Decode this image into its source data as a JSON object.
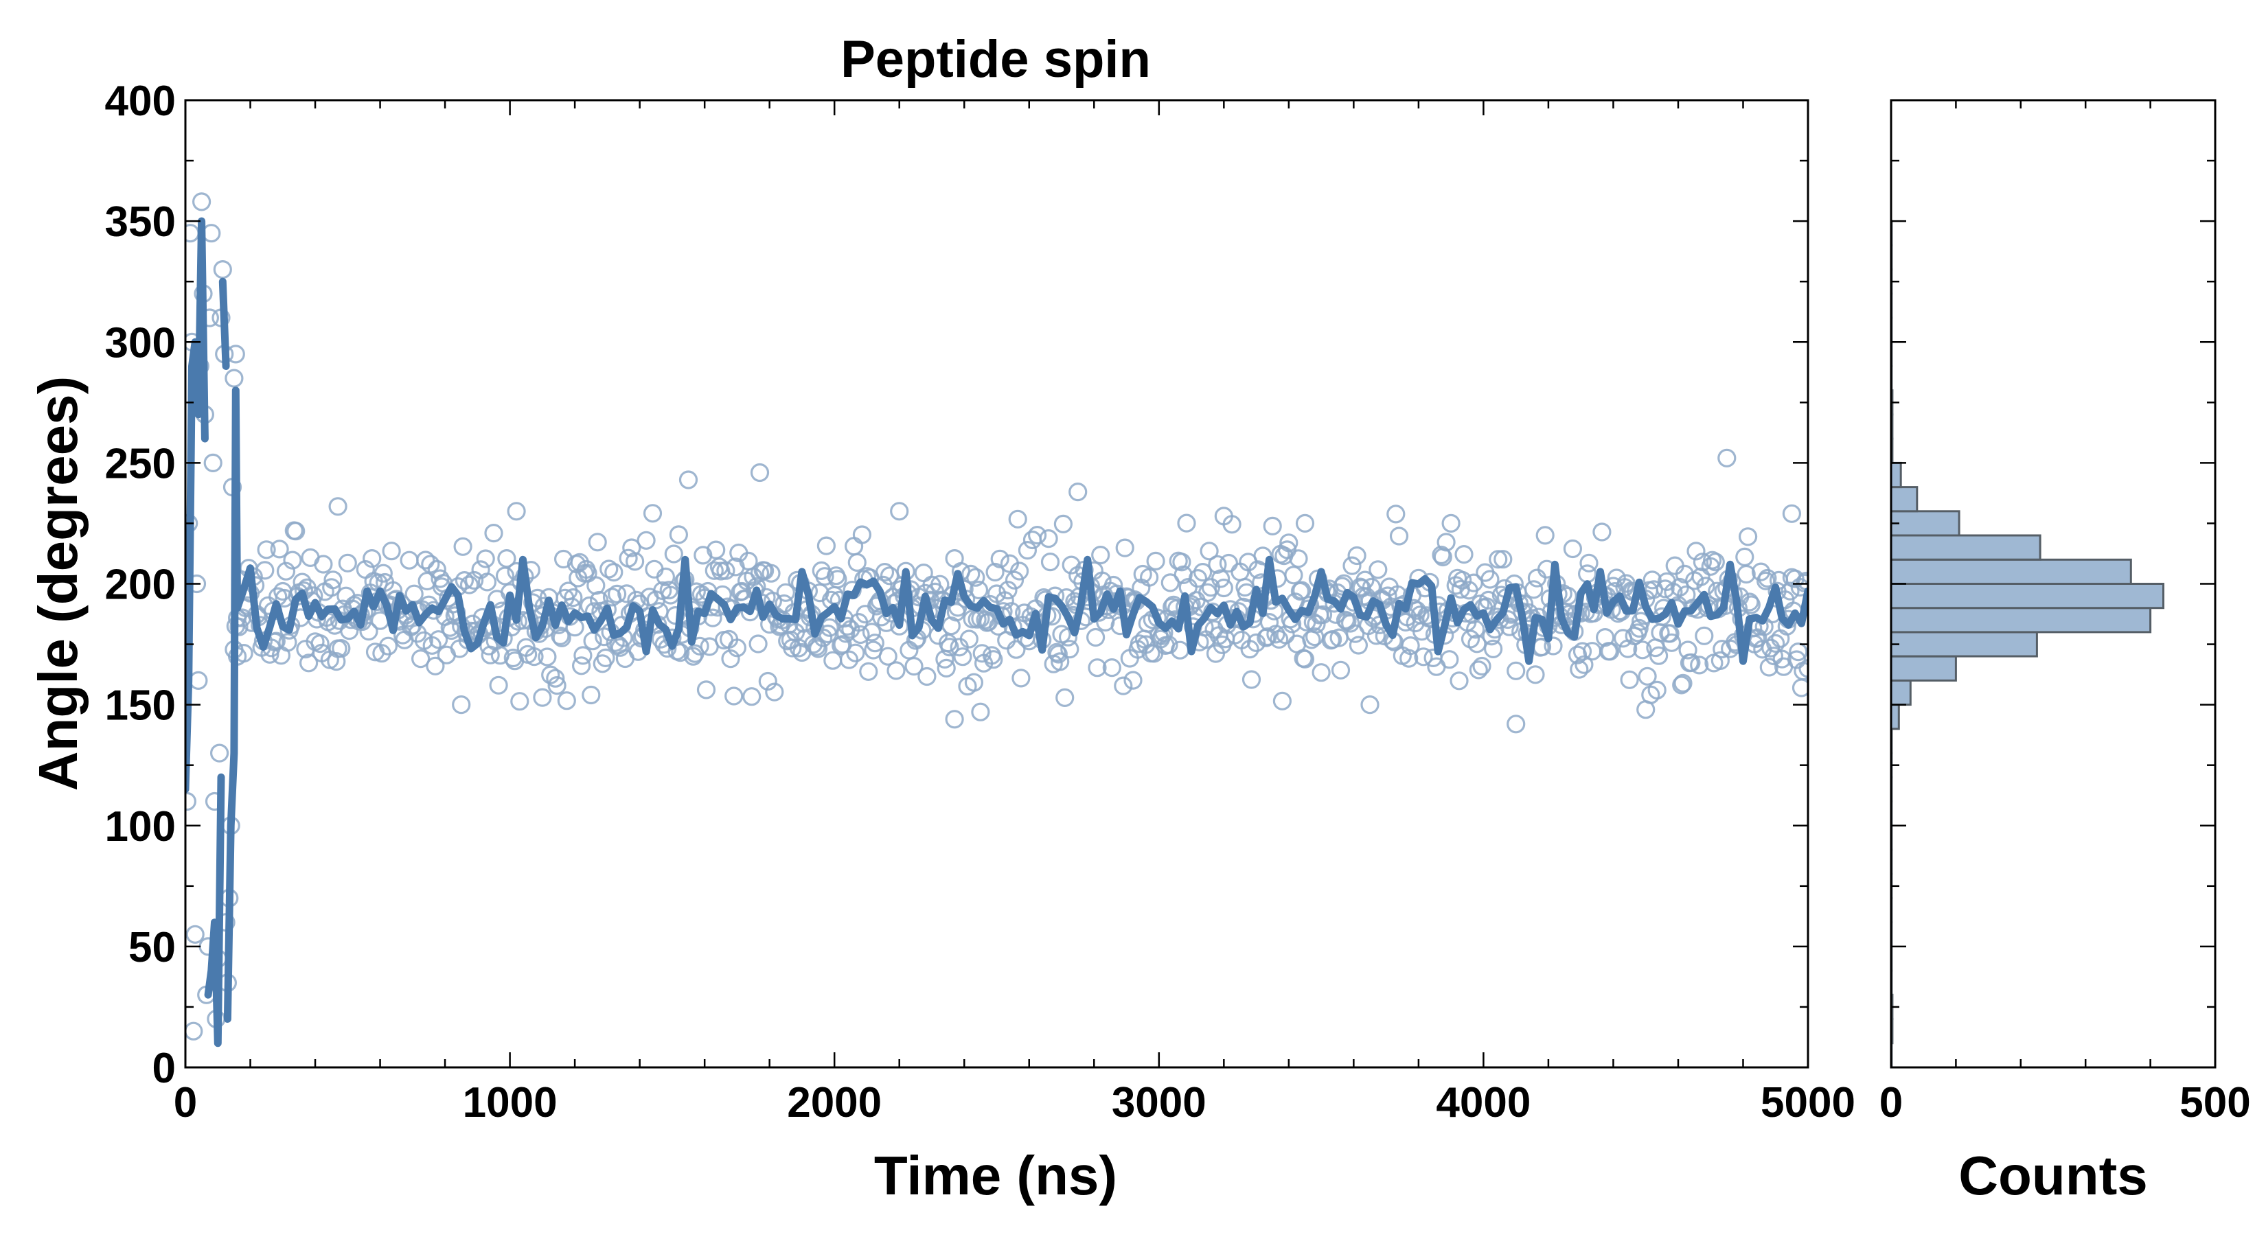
{
  "chart_data": [
    {
      "type": "scatter",
      "title": "Peptide spin",
      "xlabel": "Time (ns)",
      "ylabel": "Angle (degrees)",
      "xlim": [
        0,
        5000
      ],
      "ylim": [
        0,
        400
      ],
      "xticks": [
        "0",
        "1000",
        "2000",
        "3000",
        "4000",
        "5000"
      ],
      "yticks": [
        "0",
        "50",
        "100",
        "150",
        "200",
        "250",
        "300",
        "350",
        "400"
      ],
      "grid": false,
      "colors": {
        "marker": "#8ea9c8",
        "line": "#4a7aad"
      },
      "series": [
        {
          "style": "open-circle markers",
          "equilibrated": {
            "x_range": [
              150,
              5000
            ],
            "spacing": 5,
            "mean": 188,
            "spread": 14
          },
          "transient_points": [
            [
              5,
              110
            ],
            [
              10,
              225
            ],
            [
              15,
              345
            ],
            [
              20,
              300
            ],
            [
              25,
              15
            ],
            [
              30,
              55
            ],
            [
              35,
              200
            ],
            [
              40,
              160
            ],
            [
              45,
              290
            ],
            [
              50,
              358
            ],
            [
              55,
              320
            ],
            [
              60,
              270
            ],
            [
              65,
              30
            ],
            [
              70,
              50
            ],
            [
              75,
              310
            ],
            [
              80,
              345
            ],
            [
              85,
              250
            ],
            [
              90,
              110
            ],
            [
              95,
              20
            ],
            [
              100,
              45
            ],
            [
              105,
              130
            ],
            [
              110,
              310
            ],
            [
              115,
              330
            ],
            [
              120,
              295
            ],
            [
              125,
              60
            ],
            [
              130,
              35
            ],
            [
              135,
              70
            ],
            [
              140,
              100
            ],
            [
              145,
              240
            ],
            [
              150,
              285
            ],
            [
              155,
              295
            ],
            [
              160,
              170
            ]
          ],
          "outliers": [
            [
              470,
              232
            ],
            [
              1020,
              230
            ],
            [
              1550,
              243
            ],
            [
              1770,
              246
            ],
            [
              2200,
              230
            ],
            [
              2750,
              238
            ],
            [
              3200,
              228
            ],
            [
              3450,
              225
            ],
            [
              3900,
              225
            ],
            [
              4750,
              252
            ],
            [
              4950,
              229
            ],
            [
              2370,
              144
            ],
            [
              4100,
              142
            ],
            [
              850,
              150
            ],
            [
              3650,
              150
            ],
            [
              4500,
              148
            ],
            [
              2450,
              147
            ],
            [
              1100,
              153
            ]
          ]
        },
        {
          "style": "running-average line",
          "transient": [
            [
              0,
              115
            ],
            [
              10,
              160
            ],
            [
              20,
              290
            ],
            [
              30,
              300
            ],
            [
              40,
              270
            ],
            [
              50,
              350
            ],
            [
              60,
              260
            ],
            [
              70,
              30
            ],
            [
              80,
              40
            ],
            [
              90,
              60
            ],
            [
              100,
              10
            ],
            [
              110,
              120
            ],
            [
              115,
              325
            ],
            [
              125,
              290
            ],
            [
              130,
              20
            ],
            [
              140,
              100
            ],
            [
              150,
              130
            ],
            [
              155,
              280
            ],
            [
              160,
              190
            ]
          ],
          "equilibrated": {
            "x_range": [
              160,
              5000
            ],
            "spacing": 20,
            "mean": 188,
            "spread": 7
          },
          "peaks": [
            [
              1040,
              210
            ],
            [
              1540,
              210
            ],
            [
              1890,
              205
            ],
            [
              2210,
              205
            ],
            [
              2780,
              210
            ],
            [
              3330,
              210
            ],
            [
              3500,
              205
            ],
            [
              4210,
              208
            ],
            [
              4360,
              205
            ],
            [
              4750,
              208
            ],
            [
              4990,
              197
            ]
          ],
          "dips": [
            [
              1420,
              172
            ],
            [
              3100,
              172
            ],
            [
              3850,
              172
            ],
            [
              4130,
              168
            ],
            [
              4800,
              168
            ]
          ]
        }
      ]
    },
    {
      "type": "bar",
      "orientation": "horizontal",
      "xlabel": "Counts",
      "ylabel": "",
      "xlim": [
        0,
        500
      ],
      "ylim": [
        0,
        400
      ],
      "xticks": [
        "0",
        "500"
      ],
      "colors": {
        "fill": "#9fb8d3",
        "edge": "#555e66"
      },
      "bin_edges": [
        0,
        10,
        20,
        30,
        40,
        50,
        60,
        70,
        80,
        90,
        100,
        110,
        120,
        130,
        140,
        150,
        160,
        170,
        180,
        190,
        200,
        210,
        220,
        230,
        240,
        250,
        260,
        270,
        280,
        290,
        300,
        310,
        320,
        330,
        340,
        350,
        360,
        370,
        380,
        390,
        400
      ],
      "values": [
        1,
        2,
        2,
        1,
        1,
        1,
        1,
        1,
        1,
        1,
        1,
        1,
        1,
        1,
        12,
        30,
        100,
        225,
        400,
        420,
        370,
        230,
        105,
        40,
        15,
        2,
        2,
        2,
        1,
        1,
        1,
        1,
        1,
        1,
        1,
        0,
        0,
        0,
        0,
        0
      ]
    }
  ]
}
